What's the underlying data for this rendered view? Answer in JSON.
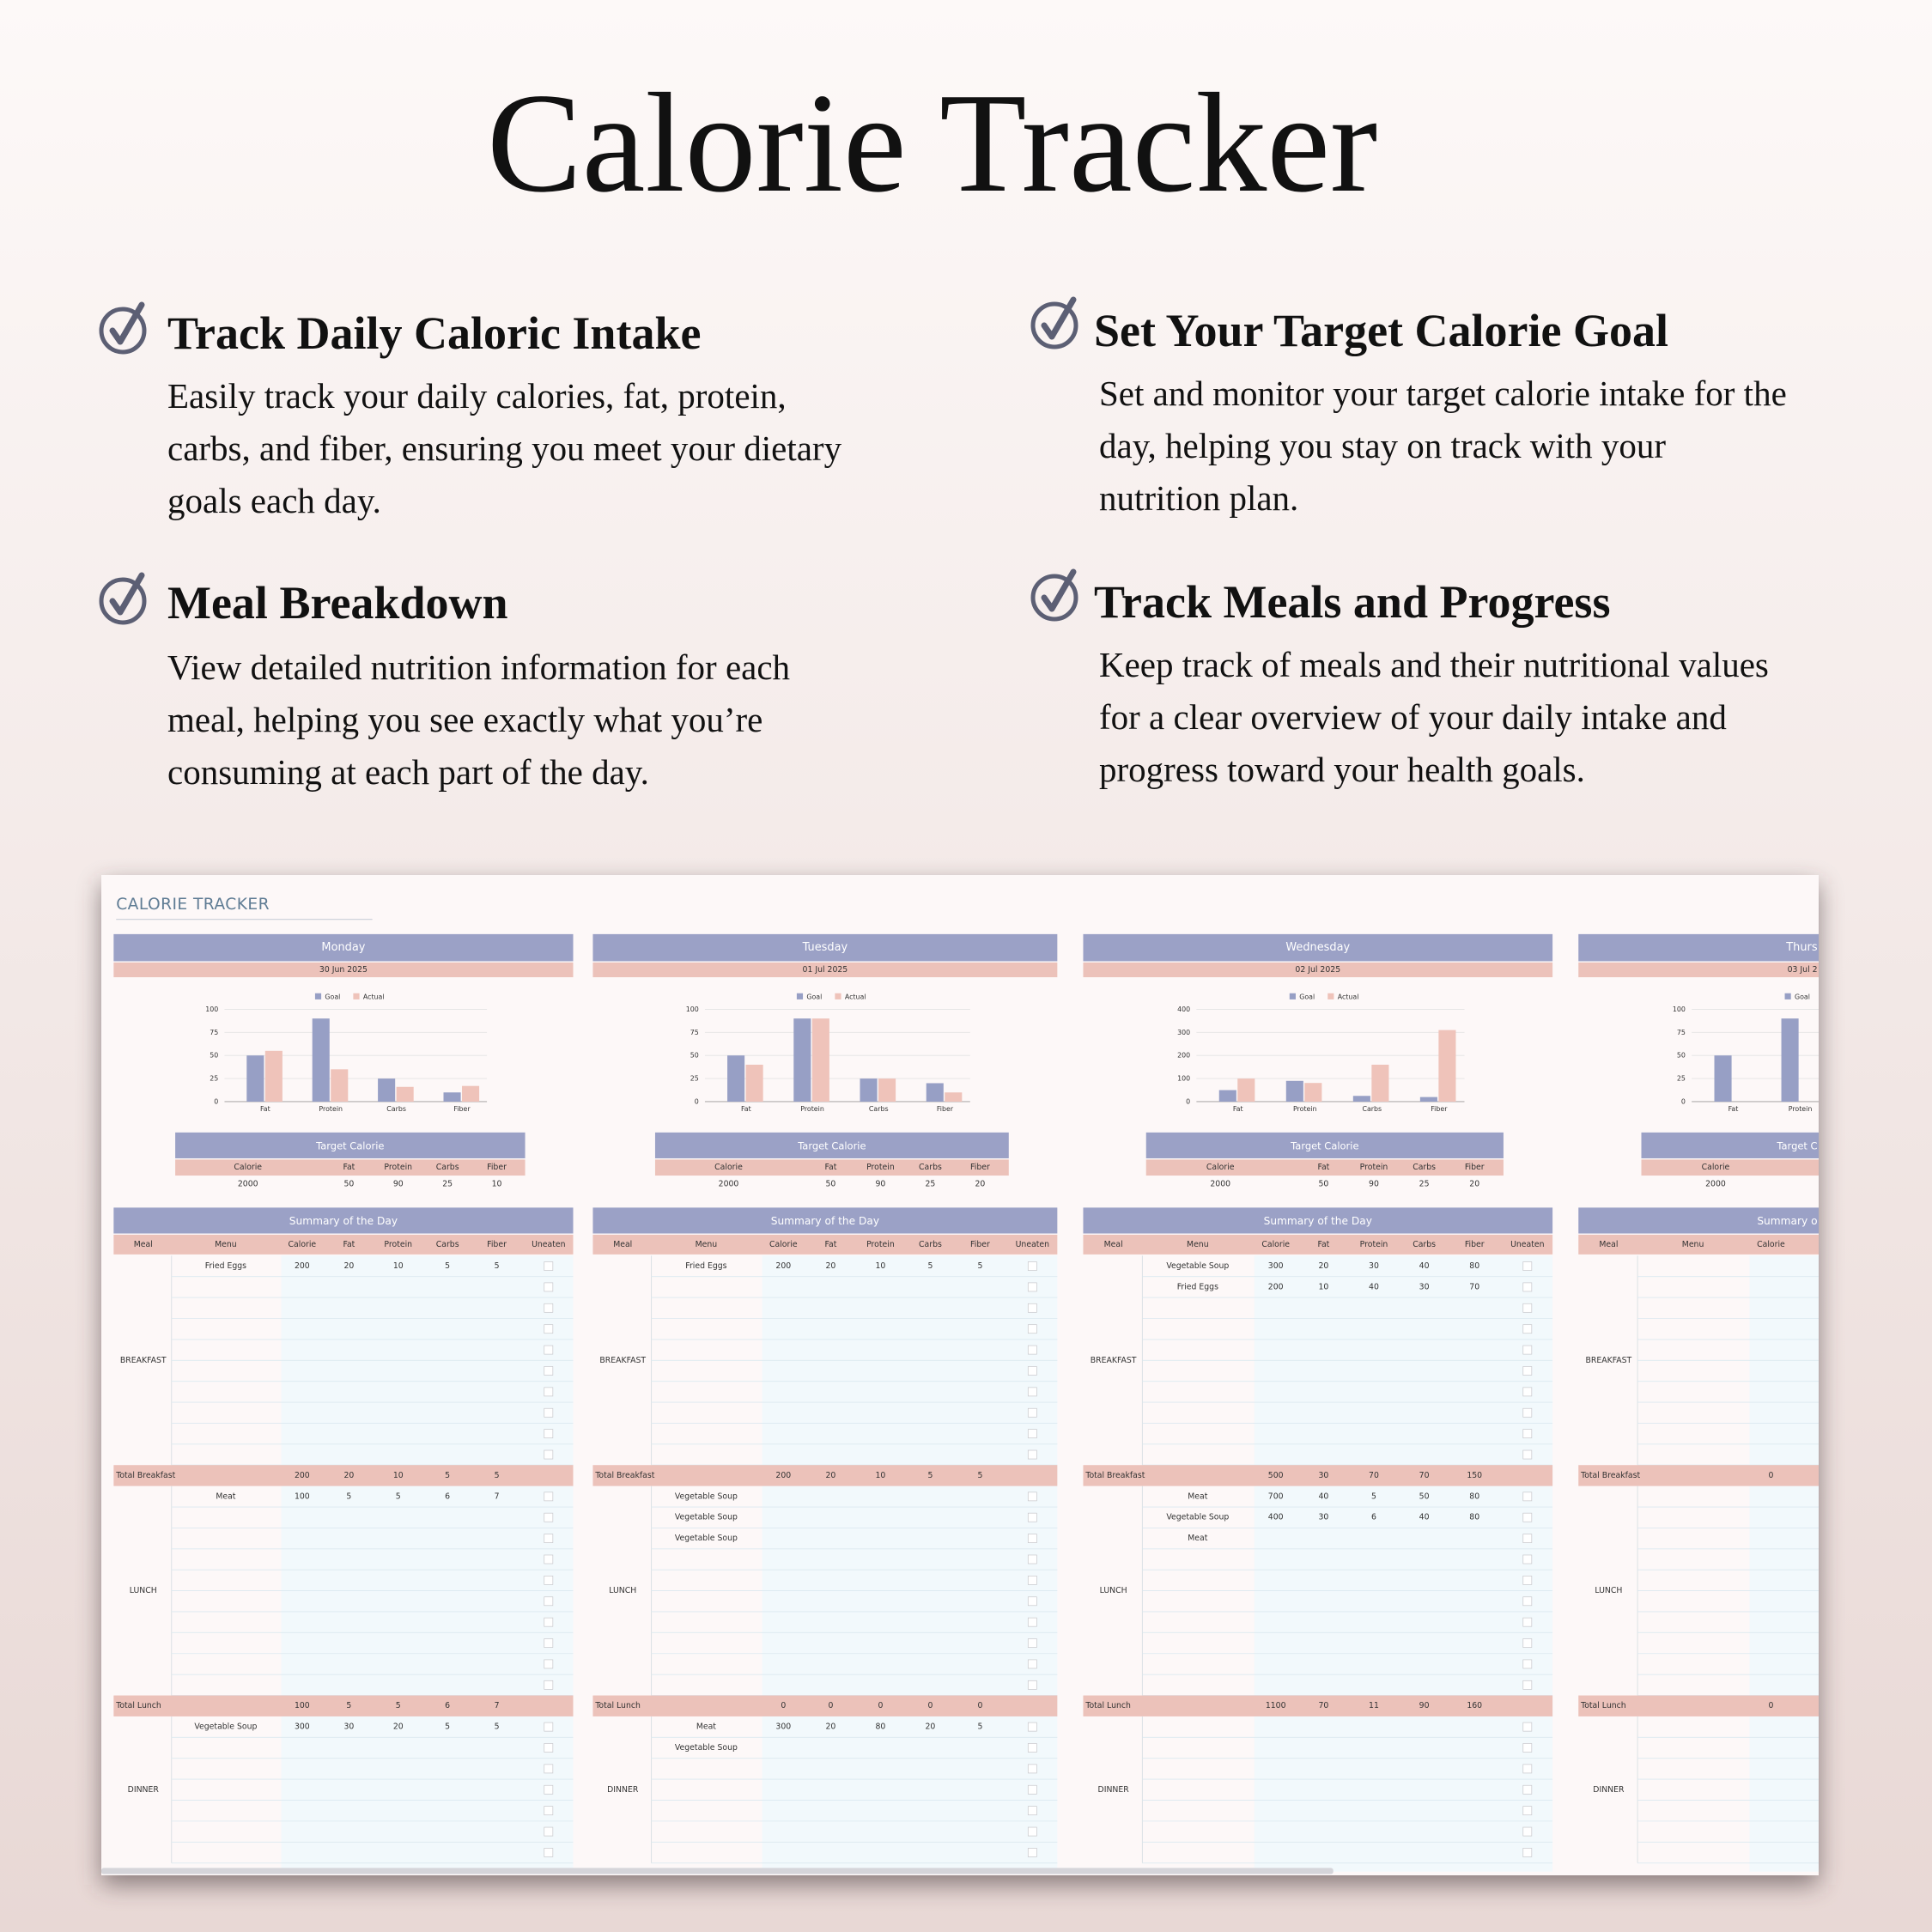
{
  "header": {
    "title": "Calorie Tracker"
  },
  "features": [
    {
      "heading": "Track Daily Caloric Intake",
      "lines": [
        "Easily track your daily calories, fat, protein,",
        "carbs, and fiber, ensuring you meet your dietary",
        "goals each day."
      ]
    },
    {
      "heading": "Set Your Target Calorie Goal",
      "lines": [
        "Set and monitor your target calorie intake for the",
        "day, helping you stay on track with your",
        "nutrition plan."
      ]
    },
    {
      "heading": "Meal Breakdown",
      "lines": [
        "View detailed nutrition information for each",
        "meal, helping you see exactly what you’re",
        "consuming at each part of the day."
      ]
    },
    {
      "heading": "Track Meals and Progress",
      "lines": [
        "Keep track of meals and their nutritional values",
        "for a clear overview of your daily intake and",
        "progress toward your health goals."
      ]
    }
  ],
  "sheet": {
    "title": "CALORIE TRACKER",
    "days": [
      {
        "day": "Monday",
        "date": "30 Jun 2025",
        "chart": {
          "type": "bar",
          "categories": [
            "Fat",
            "Protein",
            "Carbs",
            "Fiber"
          ],
          "series": [
            {
              "name": "Goal",
              "color": "#979fc5",
              "values": [
                50,
                90,
                25,
                10
              ]
            },
            {
              "name": "Actual",
              "color": "#efc3ba",
              "values": [
                55,
                35,
                16,
                17
              ]
            }
          ],
          "ylim": [
            0,
            100
          ],
          "yticks": [
            0,
            25,
            50,
            75,
            100
          ]
        },
        "target": {
          "title": "Target Calorie",
          "columns": [
            "Calorie",
            "Fat",
            "Protein",
            "Carbs",
            "Fiber"
          ],
          "values": [
            2000,
            50,
            90,
            25,
            10
          ]
        },
        "summary": {
          "title": "Summary of the Day",
          "columns": [
            "Meal",
            "Menu",
            "Calorie",
            "Fat",
            "Protein",
            "Carbs",
            "Fiber",
            "Uneaten"
          ],
          "meals": [
            {
              "name": "BREAKFAST",
              "rows": [
                [
                  "Fried Eggs",
                  200,
                  20,
                  10,
                  5,
                  5
                ]
              ],
              "total_label": "Total Breakfast",
              "total": [
                200,
                20,
                10,
                5,
                5
              ]
            },
            {
              "name": "LUNCH",
              "rows": [
                [
                  "Meat",
                  100,
                  5,
                  5,
                  6,
                  7
                ]
              ],
              "total_label": "Total Lunch",
              "total": [
                100,
                5,
                5,
                6,
                7
              ]
            },
            {
              "name": "DINNER",
              "rows": [
                [
                  "Vegetable Soup",
                  300,
                  30,
                  20,
                  5,
                  5
                ]
              ]
            }
          ]
        }
      },
      {
        "day": "Tuesday",
        "date": "01 Jul 2025",
        "chart": {
          "type": "bar",
          "categories": [
            "Fat",
            "Protein",
            "Carbs",
            "Fiber"
          ],
          "series": [
            {
              "name": "Goal",
              "color": "#979fc5",
              "values": [
                50,
                90,
                25,
                20
              ]
            },
            {
              "name": "Actual",
              "color": "#efc3ba",
              "values": [
                40,
                90,
                25,
                10
              ]
            }
          ],
          "ylim": [
            0,
            100
          ],
          "yticks": [
            0,
            25,
            50,
            75,
            100
          ]
        },
        "target": {
          "title": "Target Calorie",
          "columns": [
            "Calorie",
            "Fat",
            "Protein",
            "Carbs",
            "Fiber"
          ],
          "values": [
            2000,
            50,
            90,
            25,
            20
          ]
        },
        "summary": {
          "title": "Summary of the Day",
          "columns": [
            "Meal",
            "Menu",
            "Calorie",
            "Fat",
            "Protein",
            "Carbs",
            "Fiber",
            "Uneaten"
          ],
          "meals": [
            {
              "name": "BREAKFAST",
              "rows": [
                [
                  "Fried Eggs",
                  200,
                  20,
                  10,
                  5,
                  5
                ]
              ],
              "total_label": "Total Breakfast",
              "total": [
                200,
                20,
                10,
                5,
                5
              ]
            },
            {
              "name": "LUNCH",
              "rows": [
                [
                  "Vegetable Soup"
                ],
                [
                  "Vegetable Soup"
                ],
                [
                  "Vegetable Soup"
                ]
              ],
              "total_label": "Total Lunch",
              "total": [
                0,
                0,
                0,
                0,
                0
              ]
            },
            {
              "name": "DINNER",
              "rows": [
                [
                  "Meat",
                  300,
                  20,
                  80,
                  20,
                  5
                ],
                [
                  "Vegetable Soup"
                ]
              ]
            }
          ]
        }
      },
      {
        "day": "Wednesday",
        "date": "02 Jul 2025",
        "chart": {
          "type": "bar",
          "categories": [
            "Fat",
            "Protein",
            "Carbs",
            "Fiber"
          ],
          "series": [
            {
              "name": "Goal",
              "color": "#979fc5",
              "values": [
                50,
                90,
                25,
                20
              ]
            },
            {
              "name": "Actual",
              "color": "#efc3ba",
              "values": [
                100,
                81,
                160,
                310
              ]
            }
          ],
          "ylim": [
            0,
            400
          ],
          "yticks": [
            0,
            100,
            200,
            300,
            400
          ]
        },
        "target": {
          "title": "Target Calorie",
          "columns": [
            "Calorie",
            "Fat",
            "Protein",
            "Carbs",
            "Fiber"
          ],
          "values": [
            2000,
            50,
            90,
            25,
            20
          ]
        },
        "summary": {
          "title": "Summary of the Day",
          "columns": [
            "Meal",
            "Menu",
            "Calorie",
            "Fat",
            "Protein",
            "Carbs",
            "Fiber",
            "Uneaten"
          ],
          "meals": [
            {
              "name": "BREAKFAST",
              "rows": [
                [
                  "Vegetable Soup",
                  300,
                  20,
                  30,
                  40,
                  80
                ],
                [
                  "Fried Eggs",
                  200,
                  10,
                  40,
                  30,
                  70
                ]
              ],
              "total_label": "Total Breakfast",
              "total": [
                500,
                30,
                70,
                70,
                150
              ]
            },
            {
              "name": "LUNCH",
              "rows": [
                [
                  "Meat",
                  700,
                  40,
                  5,
                  50,
                  80
                ],
                [
                  "Vegetable Soup",
                  400,
                  30,
                  6,
                  40,
                  80
                ],
                [
                  "Meat"
                ]
              ],
              "total_label": "Total Lunch",
              "total": [
                1100,
                70,
                11,
                90,
                160
              ]
            },
            {
              "name": "DINNER",
              "rows": []
            }
          ]
        }
      },
      {
        "day": "Thurs",
        "date": "03 Jul 2",
        "chart": {
          "type": "bar",
          "categories": [
            "Fat",
            "Protein"
          ],
          "series": [
            {
              "name": "Goal",
              "color": "#979fc5",
              "values": [
                50,
                90
              ]
            }
          ],
          "ylim": [
            0,
            100
          ],
          "yticks": [
            0,
            25,
            50,
            75,
            100
          ]
        },
        "target": {
          "title": "Target C",
          "columns": [
            "Calorie"
          ],
          "values": [
            2000
          ]
        },
        "summary": {
          "title": "Summary o",
          "columns": [
            "Meal",
            "Menu",
            "Calorie"
          ],
          "meals": [
            {
              "name": "BREAKFAST",
              "rows": [],
              "total_label": "Total Breakfast",
              "total": [
                0
              ]
            },
            {
              "name": "LUNCH",
              "rows": [],
              "total_label": "Total Lunch",
              "total": [
                0
              ]
            },
            {
              "name": "DINNER",
              "rows": []
            }
          ]
        }
      }
    ]
  }
}
